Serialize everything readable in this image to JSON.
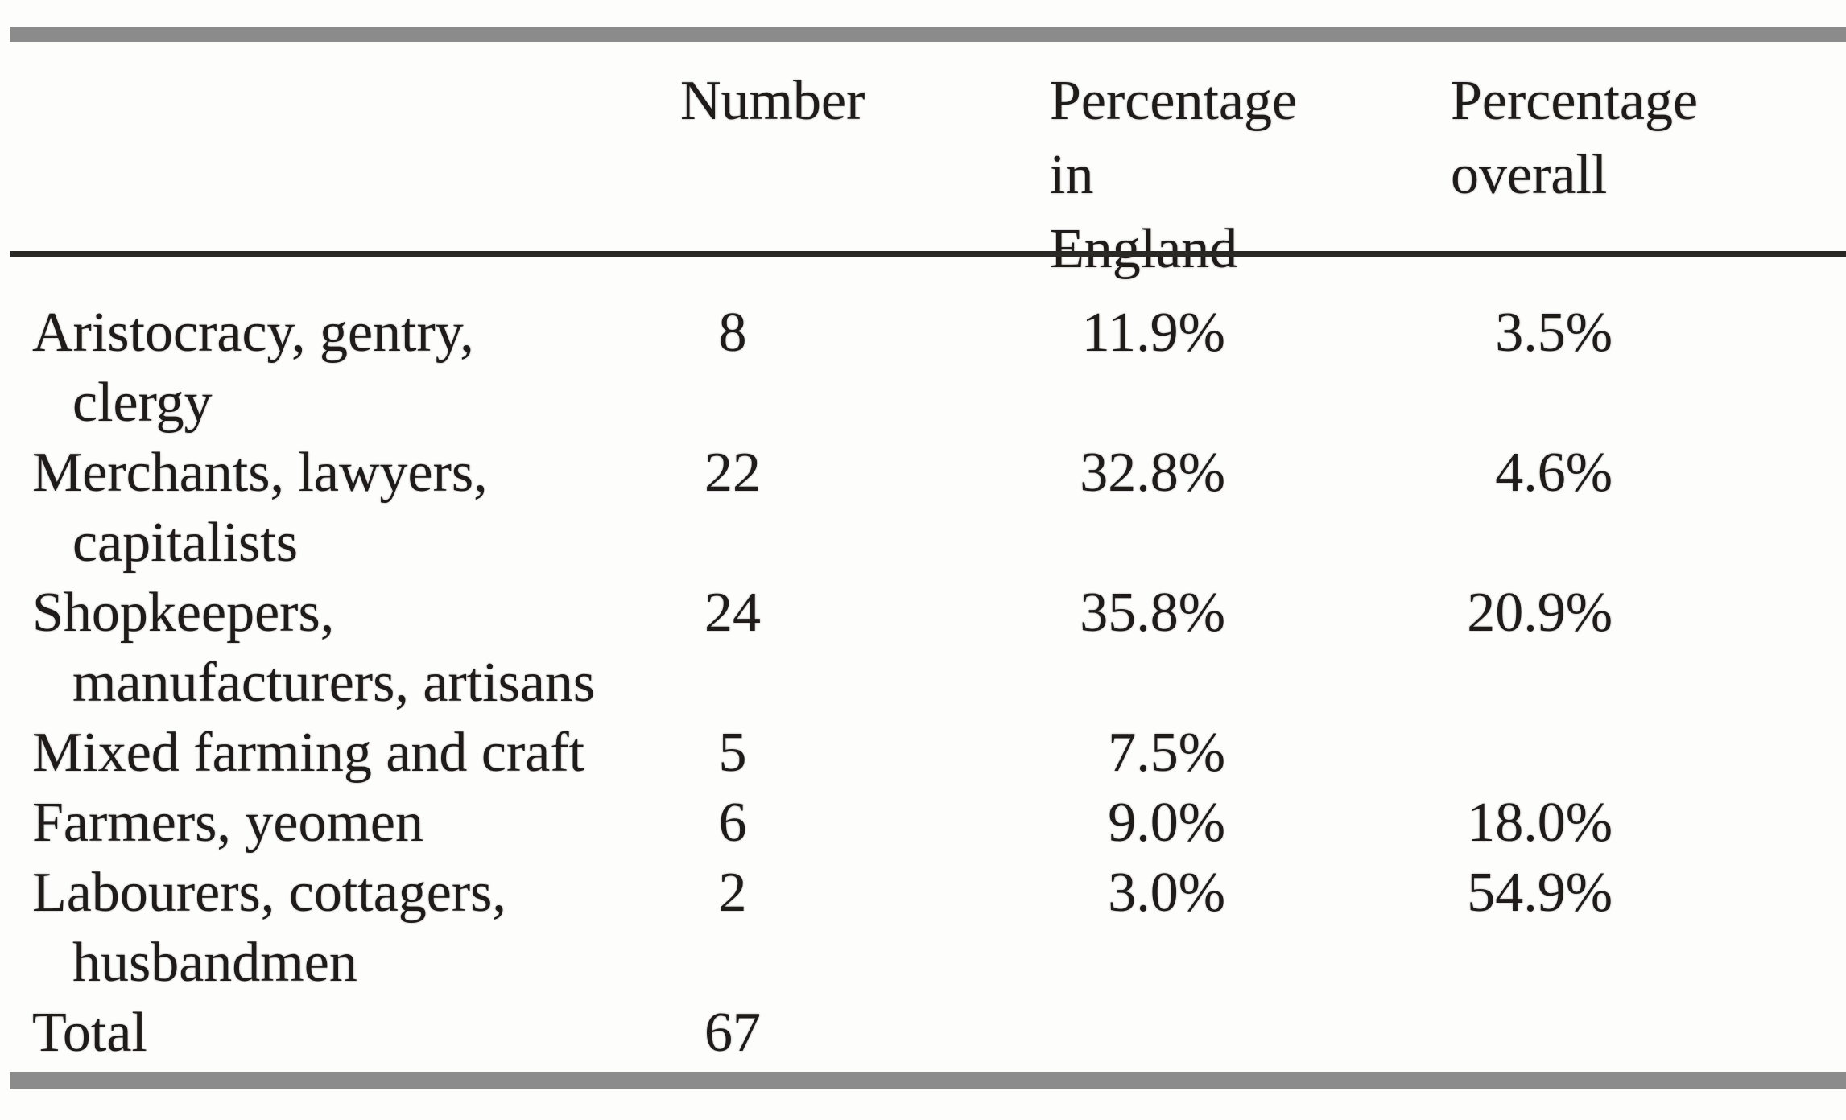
{
  "styles": {
    "border_bar_color": "#8b8b8b",
    "rule_color": "#2b2926",
    "text_color": "#1e1b19",
    "background": "#fdfdfc"
  },
  "chart_data": {
    "type": "table",
    "columns": [
      "",
      "Number",
      "Percentage in England",
      "Percentage overall"
    ],
    "header_lines": {
      "number": "Number",
      "pct_england": [
        "Percentage in",
        "England"
      ],
      "pct_overall": [
        "Percentage",
        "overall"
      ]
    },
    "rows": [
      {
        "category": [
          "Aristocracy, gentry,",
          "clergy"
        ],
        "number": "8",
        "pct_england": "11.9%",
        "pct_overall": "3.5%"
      },
      {
        "category": [
          "Merchants, lawyers,",
          "capitalists"
        ],
        "number": "22",
        "pct_england": "32.8%",
        "pct_overall": "4.6%"
      },
      {
        "category": [
          "Shopkeepers,",
          "manufacturers, artisans"
        ],
        "number": "24",
        "pct_england": "35.8%",
        "pct_overall": "20.9%"
      },
      {
        "category": [
          "Mixed farming and craft"
        ],
        "number": "5",
        "pct_england": "7.5%",
        "pct_overall": ""
      },
      {
        "category": [
          "Farmers, yeomen"
        ],
        "number": "6",
        "pct_england": "9.0%",
        "pct_overall": "18.0%"
      },
      {
        "category": [
          "Labourers, cottagers,",
          "husbandmen"
        ],
        "number": "2",
        "pct_england": "3.0%",
        "pct_overall": "54.9%"
      },
      {
        "category": [
          "Total"
        ],
        "number": "67",
        "pct_england": "",
        "pct_overall": ""
      }
    ]
  }
}
